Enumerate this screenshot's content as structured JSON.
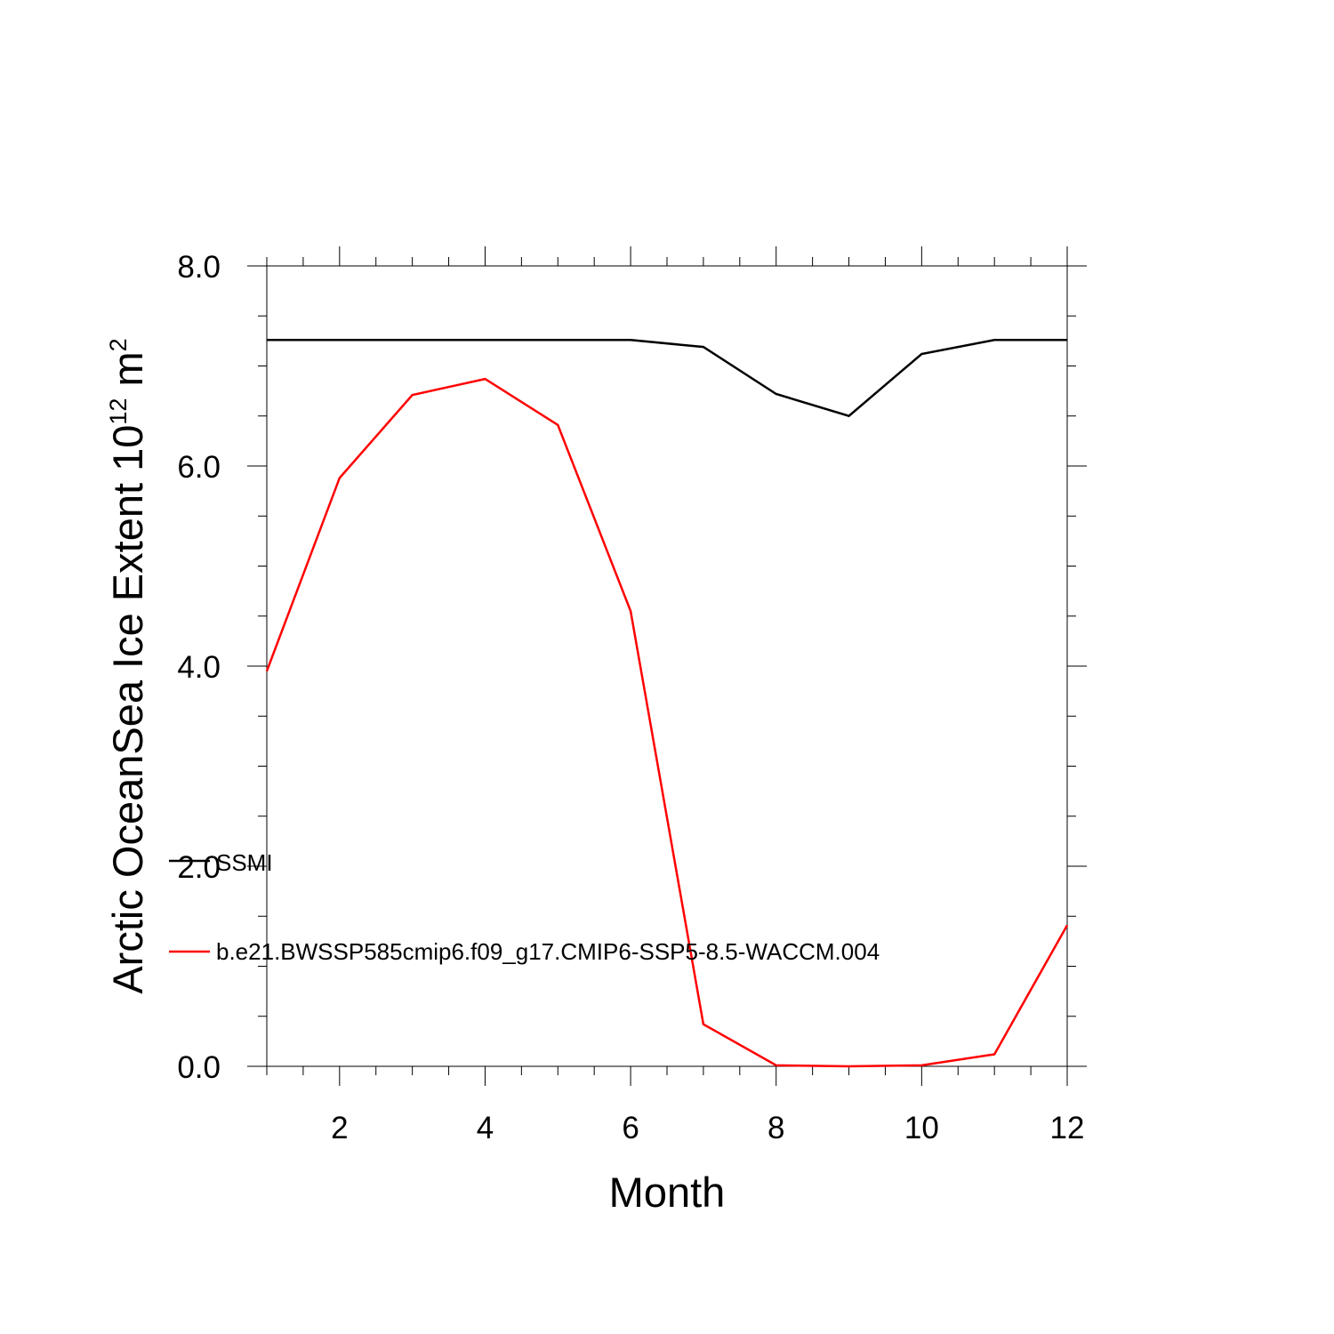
{
  "chart_data": {
    "type": "line",
    "xlabel": "Month",
    "ylabel": {
      "main": "Arctic OceanSea Ice Extent 10",
      "sup1": "12",
      "mid": " m",
      "sup2": "2"
    },
    "xlim": [
      1,
      12
    ],
    "ylim": [
      0,
      8
    ],
    "x_ticks": [
      2,
      4,
      6,
      8,
      10,
      12
    ],
    "x_tick_labels": [
      "2",
      "4",
      "6",
      "8",
      "10",
      "12"
    ],
    "y_ticks": [
      0,
      2,
      4,
      6,
      8
    ],
    "y_tick_labels": [
      "0.0",
      "2.0",
      "4.0",
      "6.0",
      "8.0"
    ],
    "grid": false,
    "legend_position": "lower-left",
    "x": [
      1,
      2,
      3,
      4,
      5,
      6,
      7,
      8,
      9,
      10,
      11,
      12
    ],
    "series": [
      {
        "name": "SSMI",
        "color": "#000000",
        "values": [
          7.26,
          7.26,
          7.26,
          7.26,
          7.26,
          7.26,
          7.19,
          6.72,
          6.5,
          7.12,
          7.26,
          7.26
        ]
      },
      {
        "name": "b.e21.BWSSP585cmip6.f09_g17.CMIP6-SSP5-8.5-WACCM.004",
        "color": "#ff0000",
        "values": [
          3.95,
          5.88,
          6.71,
          6.87,
          6.41,
          4.55,
          0.42,
          0.01,
          0.0,
          0.01,
          0.12,
          1.41
        ]
      }
    ]
  }
}
